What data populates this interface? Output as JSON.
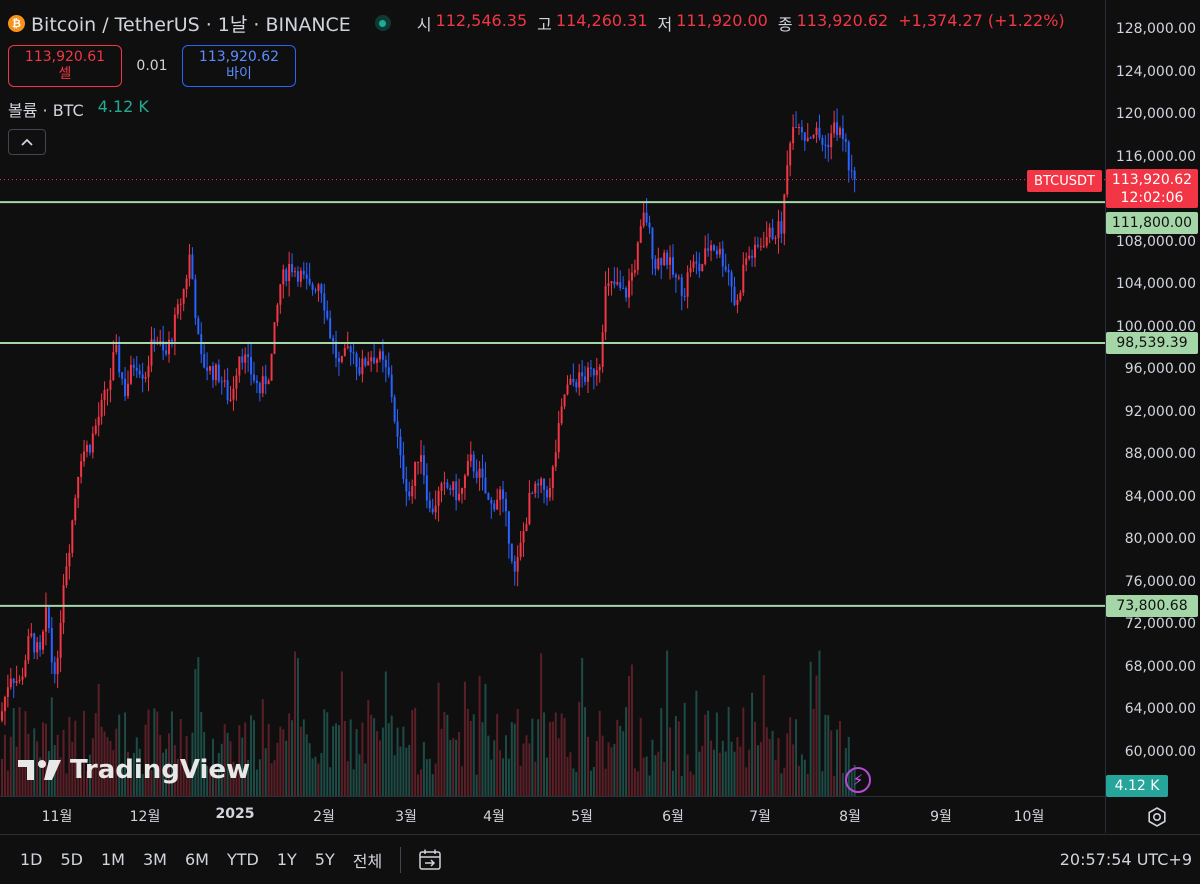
{
  "symbol": {
    "title": "Bitcoin / TetherUS · 1날 · BINANCE",
    "open_label": "시",
    "open": "112,546.35",
    "high_label": "고",
    "high": "114,260.31",
    "low_label": "저",
    "low": "111,920.00",
    "close_label": "종",
    "close": "113,920.62",
    "change": "+1,374.27 (+1.22%)"
  },
  "trade": {
    "sell_price": "113,920.61",
    "sell_label": "셀",
    "spread": "0.01",
    "buy_price": "113,920.62",
    "buy_label": "바이"
  },
  "volume_legend": {
    "label": "볼륨 · BTC",
    "value": "4.12 K"
  },
  "price_axis": {
    "ticks": [
      "128,000.00",
      "124,000.00",
      "120,000.00",
      "116,000.00",
      "108,000.00",
      "104,000.00",
      "100,000.00",
      "96,000.00",
      "92,000.00",
      "88,000.00",
      "84,000.00",
      "80,000.00",
      "76,000.00",
      "72,000.00",
      "68,000.00",
      "64,000.00",
      "60,000.00"
    ]
  },
  "labels": {
    "symbol_tag": "BTCUSDT",
    "current_price": "113,920.62",
    "countdown": "12:02:06",
    "line_1": "111,800.00",
    "line_2": "98,539.39",
    "line_3": "73,800.68",
    "volume": "4.12 K"
  },
  "time_axis": [
    "11월",
    "12월",
    "2025",
    "2월",
    "3월",
    "4월",
    "5월",
    "6월",
    "7월",
    "8월",
    "9월",
    "10월"
  ],
  "watermark": "TradingView",
  "ranges": [
    "1D",
    "5D",
    "1M",
    "3M",
    "6M",
    "YTD",
    "1Y",
    "5Y",
    "전체"
  ],
  "clock": "20:57:54 UTC+9",
  "colors": {
    "up": "#f23645",
    "down": "#2962ff",
    "hline": "#a5d6a7",
    "live": "#22ab94"
  },
  "chart_data": {
    "type": "candlestick",
    "anchors": [
      [
        0,
        63000
      ],
      [
        10,
        67500
      ],
      [
        20,
        66500
      ],
      [
        30,
        71000
      ],
      [
        40,
        69000
      ],
      [
        47,
        73500
      ],
      [
        52,
        68500
      ],
      [
        58,
        68000
      ],
      [
        62,
        75500
      ],
      [
        70,
        80000
      ],
      [
        80,
        88000
      ],
      [
        90,
        89000
      ],
      [
        100,
        92000
      ],
      [
        110,
        95000
      ],
      [
        115,
        98000
      ],
      [
        125,
        94000
      ],
      [
        135,
        97000
      ],
      [
        145,
        95500
      ],
      [
        155,
        99500
      ],
      [
        165,
        97000
      ],
      [
        175,
        100500
      ],
      [
        185,
        104000
      ],
      [
        190,
        107000
      ],
      [
        200,
        97000
      ],
      [
        210,
        96000
      ],
      [
        220,
        95500
      ],
      [
        230,
        93000
      ],
      [
        240,
        98000
      ],
      [
        250,
        96000
      ],
      [
        260,
        94000
      ],
      [
        270,
        96000
      ],
      [
        280,
        104000
      ],
      [
        290,
        106000
      ],
      [
        300,
        105000
      ],
      [
        310,
        103500
      ],
      [
        320,
        104500
      ],
      [
        330,
        99500
      ],
      [
        340,
        96000
      ],
      [
        350,
        98500
      ],
      [
        360,
        96000
      ],
      [
        370,
        97500
      ],
      [
        380,
        97000
      ],
      [
        390,
        95000
      ],
      [
        400,
        87500
      ],
      [
        410,
        84000
      ],
      [
        420,
        89000
      ],
      [
        430,
        82500
      ],
      [
        440,
        84500
      ],
      [
        450,
        85000
      ],
      [
        460,
        84000
      ],
      [
        470,
        87500
      ],
      [
        480,
        86000
      ],
      [
        490,
        83000
      ],
      [
        500,
        84500
      ],
      [
        510,
        80000
      ],
      [
        515,
        76500
      ],
      [
        520,
        79000
      ],
      [
        530,
        84000
      ],
      [
        540,
        85000
      ],
      [
        550,
        84500
      ],
      [
        555,
        88000
      ],
      [
        565,
        94000
      ],
      [
        575,
        95000
      ],
      [
        590,
        95500
      ],
      [
        600,
        97000
      ],
      [
        605,
        103500
      ],
      [
        615,
        104000
      ],
      [
        625,
        103000
      ],
      [
        635,
        106000
      ],
      [
        645,
        111000
      ],
      [
        655,
        106000
      ],
      [
        665,
        107000
      ],
      [
        675,
        104500
      ],
      [
        685,
        103500
      ],
      [
        690,
        106000
      ],
      [
        700,
        105500
      ],
      [
        710,
        108000
      ],
      [
        720,
        107000
      ],
      [
        730,
        105000
      ],
      [
        736,
        101500
      ],
      [
        745,
        106500
      ],
      [
        755,
        107000
      ],
      [
        765,
        108500
      ],
      [
        775,
        109000
      ],
      [
        782,
        109500
      ],
      [
        790,
        118000
      ],
      [
        797,
        120000
      ],
      [
        805,
        118000
      ],
      [
        815,
        118500
      ],
      [
        825,
        117000
      ],
      [
        835,
        119000
      ],
      [
        845,
        117500
      ],
      [
        850,
        114500
      ],
      [
        856,
        113920
      ]
    ],
    "horizontal_lines": [
      111800,
      98539.39,
      73800.68
    ],
    "current_price": 113920.62,
    "y_range": [
      58000,
      130000
    ]
  }
}
